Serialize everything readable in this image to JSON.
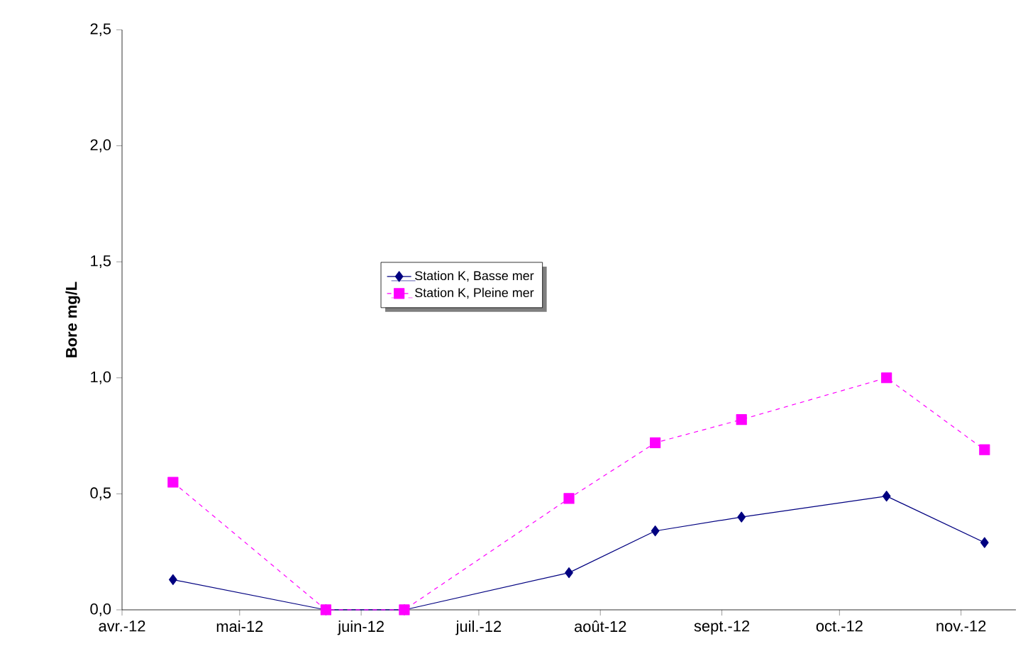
{
  "chart_data": {
    "type": "line",
    "ylabel": "Bore mg/L",
    "x": [
      "2012-04-14",
      "2012-05-23",
      "2012-06-12",
      "2012-07-24",
      "2012-08-15",
      "2012-09-06",
      "2012-10-13",
      "2012-11-07"
    ],
    "series": [
      {
        "name": "Station K, Basse mer",
        "color": "#000080",
        "marker": "diamond",
        "line_style": "solid",
        "values": [
          0.13,
          0,
          0,
          0.16,
          0.34,
          0.4,
          0.49,
          0.29
        ]
      },
      {
        "name": "Station K, Pleine mer",
        "color": "#ff00ff",
        "marker": "square",
        "line_style": "dashed",
        "values": [
          0.55,
          0,
          0,
          0.48,
          0.72,
          0.82,
          1.0,
          0.69
        ]
      }
    ],
    "xlim": [
      "2012-04-01",
      "2012-11-15"
    ],
    "xticks": [
      {
        "value": "2012-04-01",
        "label": "avr.-12"
      },
      {
        "value": "2012-05-01",
        "label": "mai-12"
      },
      {
        "value": "2012-06-01",
        "label": "juin-12"
      },
      {
        "value": "2012-07-01",
        "label": "juil.-12"
      },
      {
        "value": "2012-08-01",
        "label": "août-12"
      },
      {
        "value": "2012-09-01",
        "label": "sept.-12"
      },
      {
        "value": "2012-10-01",
        "label": "oct.-12"
      },
      {
        "value": "2012-11-01",
        "label": "nov.-12"
      }
    ],
    "ylim": [
      0,
      2.5
    ],
    "yticks": [
      {
        "value": 0,
        "label": "0,0"
      },
      {
        "value": 0.5,
        "label": "0,5"
      },
      {
        "value": 1.0,
        "label": "1,0"
      },
      {
        "value": 1.5,
        "label": "1,5"
      },
      {
        "value": 2.0,
        "label": "2,0"
      },
      {
        "value": 2.5,
        "label": "2,5"
      }
    ],
    "grid": false,
    "legend": "center"
  }
}
